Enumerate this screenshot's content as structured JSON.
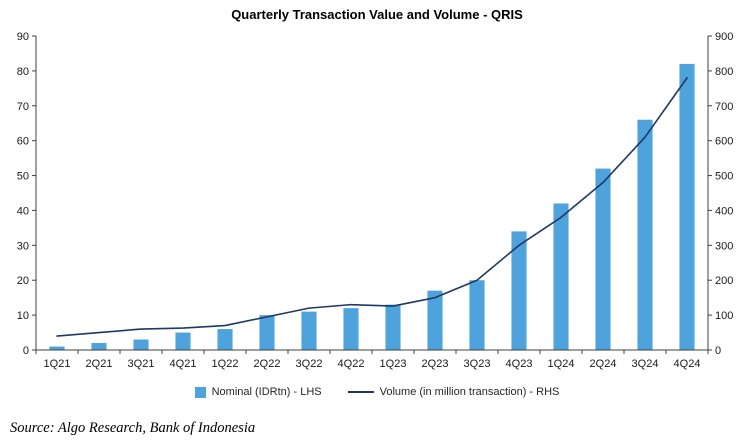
{
  "source_note": "Source: Algo Research, Bank of Indonesia",
  "chart_data": {
    "type": "bar+line combo",
    "title": "Quarterly Transaction Value and Volume - QRIS",
    "categories": [
      "1Q21",
      "2Q21",
      "3Q21",
      "4Q21",
      "1Q22",
      "2Q22",
      "3Q22",
      "4Q22",
      "1Q23",
      "2Q23",
      "3Q23",
      "4Q23",
      "1Q24",
      "2Q24",
      "3Q24",
      "4Q24"
    ],
    "series": [
      {
        "name": "Nominal (IDRtn) - LHS",
        "type": "bar",
        "axis": "left",
        "color": "#4FA3DC",
        "values": [
          1,
          2,
          3,
          5,
          6,
          10,
          11,
          12,
          13,
          17,
          20,
          34,
          42,
          52,
          66,
          82
        ]
      },
      {
        "name": "Volume (in million transaction) - RHS",
        "type": "line",
        "axis": "right",
        "color": "#1F3864",
        "values": [
          40,
          50,
          60,
          63,
          70,
          95,
          120,
          130,
          126,
          150,
          200,
          300,
          380,
          480,
          610,
          780
        ]
      }
    ],
    "left_axis": {
      "min": 0,
      "max": 90,
      "step": 10,
      "ticks": [
        "0",
        "10",
        "20",
        "30",
        "40",
        "50",
        "60",
        "70",
        "80",
        "90"
      ]
    },
    "right_axis": {
      "min": 0,
      "max": 900,
      "step": 100,
      "ticks": [
        "0",
        "100",
        "200",
        "300",
        "400",
        "500",
        "600",
        "700",
        "800",
        "900"
      ]
    },
    "grid": false,
    "legend_position": "bottom"
  }
}
